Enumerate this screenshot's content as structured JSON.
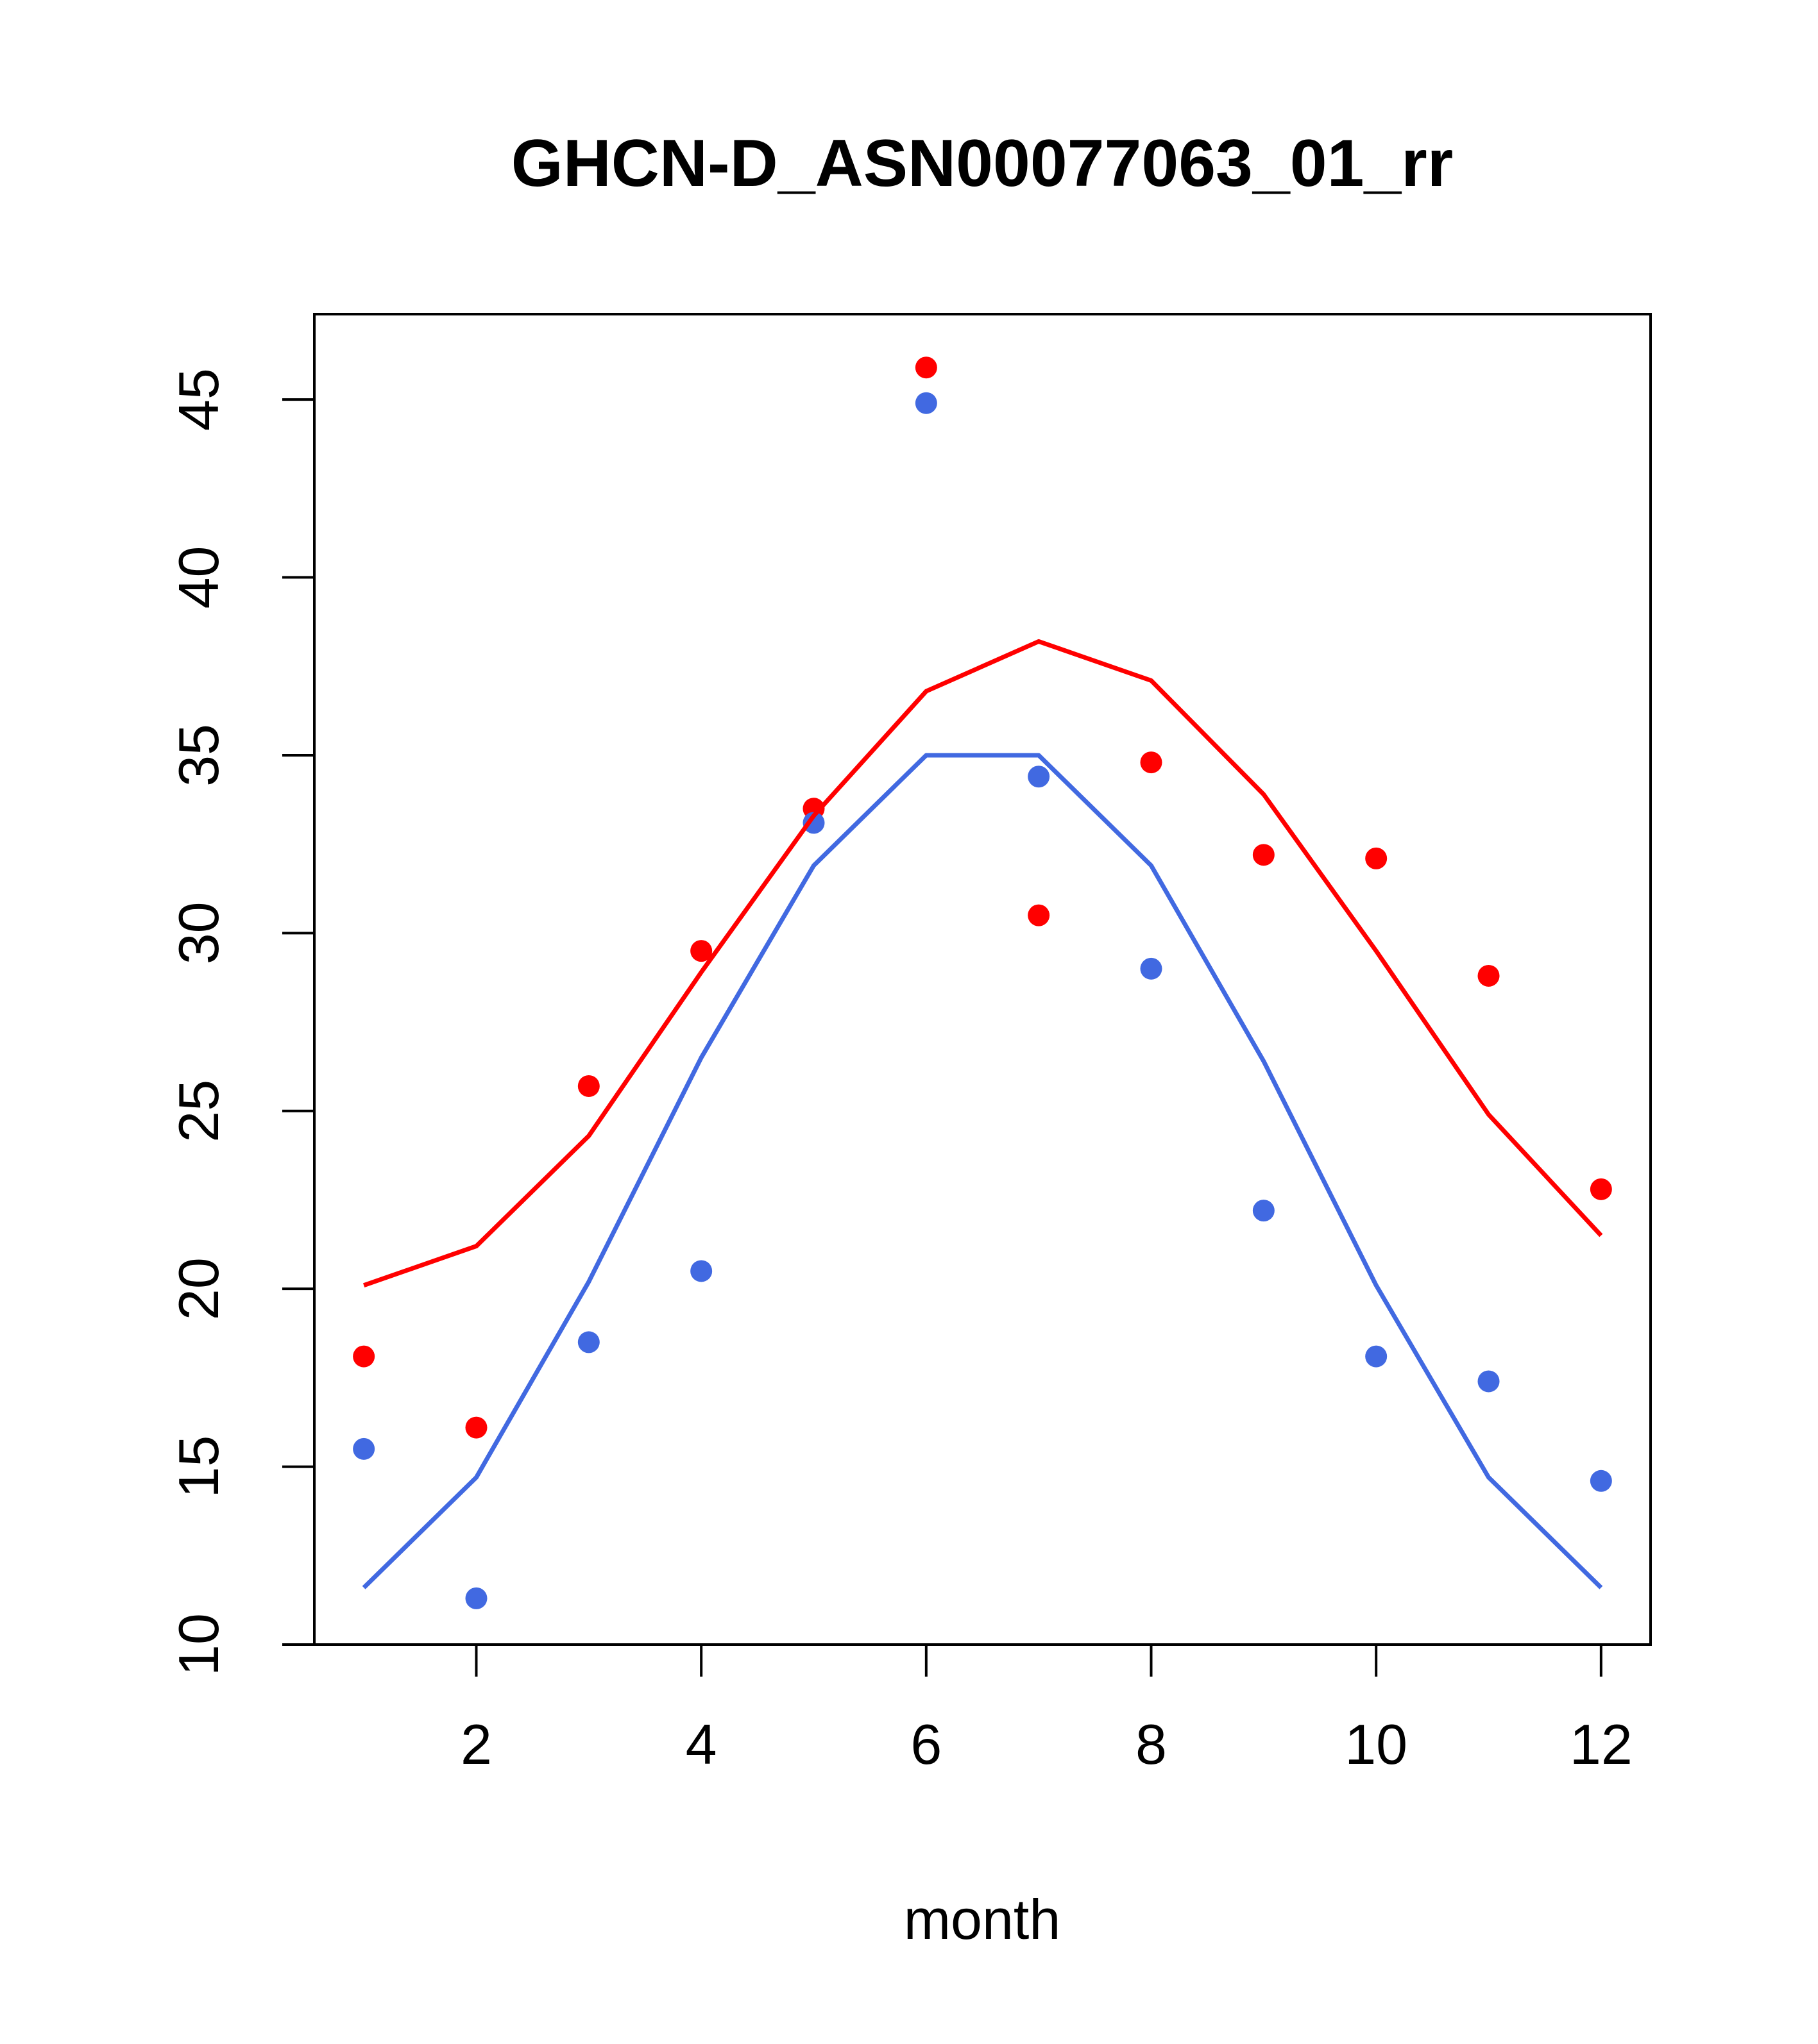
{
  "chart_data": {
    "type": "scatter",
    "title": "GHCN-D_ASN00077063_01_rr",
    "xlabel": "month",
    "ylabel": "",
    "xlim": [
      0.56,
      12.44
    ],
    "ylim": [
      10,
      47.4
    ],
    "x_ticks": [
      2,
      4,
      6,
      8,
      10,
      12
    ],
    "y_ticks": [
      10,
      15,
      20,
      25,
      30,
      35,
      40,
      45
    ],
    "grid": false,
    "legend": "none",
    "series": [
      {
        "color": "#ff0000",
        "style": "points",
        "x": [
          1,
          2,
          3,
          4,
          5,
          6,
          7,
          8,
          9,
          10,
          11,
          12
        ],
        "values": [
          18.1,
          16.1,
          25.7,
          29.5,
          33.5,
          45.9,
          30.5,
          34.8,
          32.2,
          32.1,
          28.8,
          22.8
        ]
      },
      {
        "color": "#4169e1",
        "style": "points",
        "x": [
          1,
          2,
          3,
          4,
          5,
          6,
          7,
          8,
          9,
          10,
          11,
          12
        ],
        "values": [
          15.5,
          11.3,
          18.5,
          20.5,
          33.1,
          44.9,
          34.4,
          29.0,
          22.2,
          18.1,
          17.4,
          14.6
        ]
      },
      {
        "color": "#ff0000",
        "style": "line",
        "x": [
          1,
          2,
          3,
          4,
          5,
          6,
          7,
          8,
          9,
          10,
          11,
          12
        ],
        "values": [
          20.1,
          21.2,
          24.3,
          28.9,
          33.3,
          36.8,
          38.2,
          37.1,
          33.9,
          29.5,
          24.9,
          21.5
        ]
      },
      {
        "color": "#4169e1",
        "style": "line",
        "x": [
          1,
          2,
          3,
          4,
          5,
          6,
          7,
          8,
          9,
          10,
          11,
          12
        ],
        "values": [
          11.6,
          14.7,
          20.2,
          26.5,
          31.9,
          35.0,
          35.0,
          31.9,
          26.4,
          20.1,
          14.7,
          11.6
        ]
      }
    ]
  }
}
